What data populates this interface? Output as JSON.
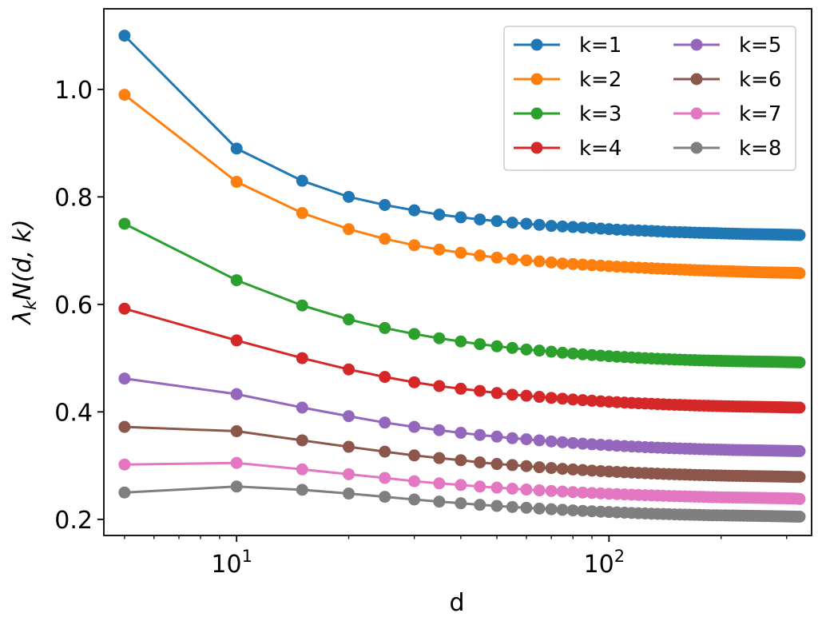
{
  "chart_data": {
    "type": "line",
    "xscale": "log",
    "xlabel": "d",
    "ylabel_main": "λ",
    "ylabel_sub": "k",
    "ylabel_rest": "N(d, k)",
    "xlim": [
      4.4,
      350
    ],
    "ylim": [
      0.17,
      1.15
    ],
    "x_major_ticks": [
      10,
      100
    ],
    "x_tick_base": "10",
    "x_tick_exponents": [
      "1",
      "2"
    ],
    "y_ticks": [
      0.2,
      0.4,
      0.6,
      0.8,
      1.0
    ],
    "y_tick_labels": [
      "0.2",
      "0.4",
      "0.6",
      "0.8",
      "1.0"
    ],
    "grid": false,
    "legend_position": "top-right",
    "legend_columns": 2,
    "x_start": 5,
    "x_step": 5,
    "x_count": 65,
    "series": [
      {
        "name": "k=1",
        "color": "#1f77b4",
        "values": [
          1.1,
          0.89,
          0.83,
          0.8,
          0.785,
          0.775,
          0.767,
          0.762,
          0.758,
          0.755,
          0.752,
          0.75,
          0.748,
          0.746,
          0.745,
          0.744,
          0.743,
          0.742,
          0.741,
          0.74,
          0.739,
          0.7385,
          0.738,
          0.7375,
          0.737,
          0.7365,
          0.736,
          0.7355,
          0.735,
          0.7347,
          0.7344,
          0.7341,
          0.7338,
          0.7335,
          0.7332,
          0.733,
          0.7328,
          0.7326,
          0.7324,
          0.7322,
          0.732,
          0.7318,
          0.7316,
          0.7314,
          0.7312,
          0.731,
          0.7309,
          0.7308,
          0.7307,
          0.7306,
          0.7305,
          0.7304,
          0.7303,
          0.7302,
          0.7301,
          0.73,
          0.7299,
          0.7298,
          0.7297,
          0.7296,
          0.7295,
          0.7294,
          0.7293,
          0.7292,
          0.729
        ]
      },
      {
        "name": "k=2",
        "color": "#ff7f0e",
        "values": [
          0.99,
          0.828,
          0.77,
          0.74,
          0.722,
          0.71,
          0.702,
          0.696,
          0.691,
          0.687,
          0.684,
          0.682,
          0.68,
          0.678,
          0.676,
          0.675,
          0.674,
          0.673,
          0.672,
          0.671,
          0.6703,
          0.6696,
          0.669,
          0.6684,
          0.6678,
          0.6672,
          0.6667,
          0.6662,
          0.6657,
          0.6653,
          0.6649,
          0.6645,
          0.6641,
          0.6637,
          0.6634,
          0.6631,
          0.6628,
          0.6625,
          0.6622,
          0.662,
          0.6618,
          0.6616,
          0.6614,
          0.6612,
          0.661,
          0.6608,
          0.6606,
          0.6604,
          0.6602,
          0.66,
          0.6598,
          0.6597,
          0.6596,
          0.6595,
          0.6594,
          0.6593,
          0.6592,
          0.6591,
          0.659,
          0.6589,
          0.6588,
          0.6587,
          0.6586,
          0.6585,
          0.658
        ]
      },
      {
        "name": "k=3",
        "color": "#2ca02c",
        "values": [
          0.75,
          0.645,
          0.598,
          0.572,
          0.556,
          0.545,
          0.537,
          0.531,
          0.526,
          0.522,
          0.519,
          0.516,
          0.514,
          0.512,
          0.51,
          0.5085,
          0.507,
          0.5058,
          0.5046,
          0.5036,
          0.5027,
          0.5019,
          0.5012,
          0.5005,
          0.4999,
          0.4993,
          0.4988,
          0.4983,
          0.4979,
          0.4975,
          0.4971,
          0.4968,
          0.4965,
          0.4962,
          0.4959,
          0.4957,
          0.4955,
          0.4953,
          0.4951,
          0.4949,
          0.4947,
          0.4945,
          0.4943,
          0.4942,
          0.4941,
          0.494,
          0.4939,
          0.4938,
          0.4937,
          0.4936,
          0.4935,
          0.4934,
          0.4933,
          0.4932,
          0.4931,
          0.493,
          0.4929,
          0.4928,
          0.4927,
          0.4926,
          0.4925,
          0.4924,
          0.4923,
          0.4922,
          0.492
        ]
      },
      {
        "name": "k=4",
        "color": "#d62728",
        "values": [
          0.592,
          0.533,
          0.5,
          0.479,
          0.465,
          0.455,
          0.448,
          0.443,
          0.439,
          0.435,
          0.432,
          0.43,
          0.428,
          0.426,
          0.4245,
          0.423,
          0.4218,
          0.4207,
          0.4197,
          0.4188,
          0.418,
          0.4173,
          0.4166,
          0.416,
          0.4155,
          0.415,
          0.4145,
          0.414,
          0.4136,
          0.4132,
          0.4129,
          0.4126,
          0.4123,
          0.412,
          0.4117,
          0.4115,
          0.4113,
          0.4111,
          0.4109,
          0.4107,
          0.4105,
          0.4103,
          0.4101,
          0.41,
          0.4099,
          0.4098,
          0.4097,
          0.4096,
          0.4095,
          0.4094,
          0.4093,
          0.4092,
          0.4091,
          0.409,
          0.4089,
          0.4088,
          0.4087,
          0.4086,
          0.4085,
          0.4084,
          0.4083,
          0.4082,
          0.4081,
          0.408,
          0.408
        ]
      },
      {
        "name": "k=5",
        "color": "#9467bd",
        "values": [
          0.462,
          0.433,
          0.408,
          0.392,
          0.38,
          0.372,
          0.366,
          0.361,
          0.357,
          0.354,
          0.351,
          0.349,
          0.347,
          0.345,
          0.3435,
          0.342,
          0.3408,
          0.3397,
          0.3387,
          0.3378,
          0.337,
          0.3363,
          0.3356,
          0.335,
          0.3344,
          0.3339,
          0.3334,
          0.333,
          0.3326,
          0.3322,
          0.3319,
          0.3316,
          0.3313,
          0.331,
          0.3307,
          0.3305,
          0.3303,
          0.3301,
          0.3299,
          0.3297,
          0.3295,
          0.3293,
          0.3291,
          0.329,
          0.3289,
          0.3288,
          0.3287,
          0.3286,
          0.3285,
          0.3284,
          0.3283,
          0.3282,
          0.3281,
          0.328,
          0.3279,
          0.3278,
          0.3277,
          0.3276,
          0.3275,
          0.3274,
          0.3273,
          0.3272,
          0.3271,
          0.327,
          0.327
        ]
      },
      {
        "name": "k=6",
        "color": "#8c564b",
        "values": [
          0.372,
          0.364,
          0.347,
          0.335,
          0.326,
          0.319,
          0.314,
          0.31,
          0.306,
          0.303,
          0.301,
          0.299,
          0.297,
          0.2955,
          0.294,
          0.2928,
          0.2917,
          0.2907,
          0.2898,
          0.289,
          0.2883,
          0.2876,
          0.287,
          0.2864,
          0.2859,
          0.2854,
          0.285,
          0.2846,
          0.2842,
          0.2839,
          0.2836,
          0.2833,
          0.283,
          0.2827,
          0.2825,
          0.2823,
          0.2821,
          0.2819,
          0.2817,
          0.2815,
          0.2813,
          0.2811,
          0.281,
          0.2809,
          0.2808,
          0.2807,
          0.2806,
          0.2805,
          0.2804,
          0.2803,
          0.2802,
          0.2801,
          0.28,
          0.2799,
          0.2798,
          0.2797,
          0.2796,
          0.2795,
          0.2794,
          0.2793,
          0.2792,
          0.2791,
          0.279,
          0.279,
          0.279
        ]
      },
      {
        "name": "k=7",
        "color": "#e377c2",
        "values": [
          0.302,
          0.305,
          0.293,
          0.284,
          0.277,
          0.271,
          0.267,
          0.264,
          0.261,
          0.259,
          0.257,
          0.2555,
          0.254,
          0.2528,
          0.2517,
          0.2507,
          0.2498,
          0.249,
          0.2483,
          0.2476,
          0.247,
          0.2464,
          0.2459,
          0.2454,
          0.245,
          0.2446,
          0.2442,
          0.2438,
          0.2435,
          0.2432,
          0.2429,
          0.2426,
          0.2424,
          0.2422,
          0.242,
          0.2418,
          0.2416,
          0.2414,
          0.2412,
          0.241,
          0.2409,
          0.2408,
          0.2407,
          0.2406,
          0.2405,
          0.2404,
          0.2403,
          0.2402,
          0.2401,
          0.24,
          0.2399,
          0.2398,
          0.2397,
          0.2396,
          0.2395,
          0.2394,
          0.2393,
          0.2392,
          0.2391,
          0.239,
          0.2389,
          0.2388,
          0.2387,
          0.2386,
          0.238
        ]
      },
      {
        "name": "k=8",
        "color": "#7f7f7f",
        "values": [
          0.25,
          0.261,
          0.255,
          0.248,
          0.242,
          0.237,
          0.233,
          0.23,
          0.227,
          0.225,
          0.223,
          0.2215,
          0.22,
          0.2188,
          0.2177,
          0.2167,
          0.2158,
          0.215,
          0.2143,
          0.2136,
          0.213,
          0.2124,
          0.2119,
          0.2114,
          0.211,
          0.2106,
          0.2102,
          0.2099,
          0.2096,
          0.2093,
          0.209,
          0.2088,
          0.2086,
          0.2084,
          0.2082,
          0.208,
          0.2078,
          0.2076,
          0.2075,
          0.2074,
          0.2073,
          0.2072,
          0.2071,
          0.207,
          0.2069,
          0.2068,
          0.2067,
          0.2066,
          0.2065,
          0.2064,
          0.2063,
          0.2062,
          0.2061,
          0.206,
          0.2059,
          0.2058,
          0.2057,
          0.2056,
          0.2055,
          0.2054,
          0.2053,
          0.2052,
          0.2051,
          0.205,
          0.205
        ]
      }
    ]
  }
}
